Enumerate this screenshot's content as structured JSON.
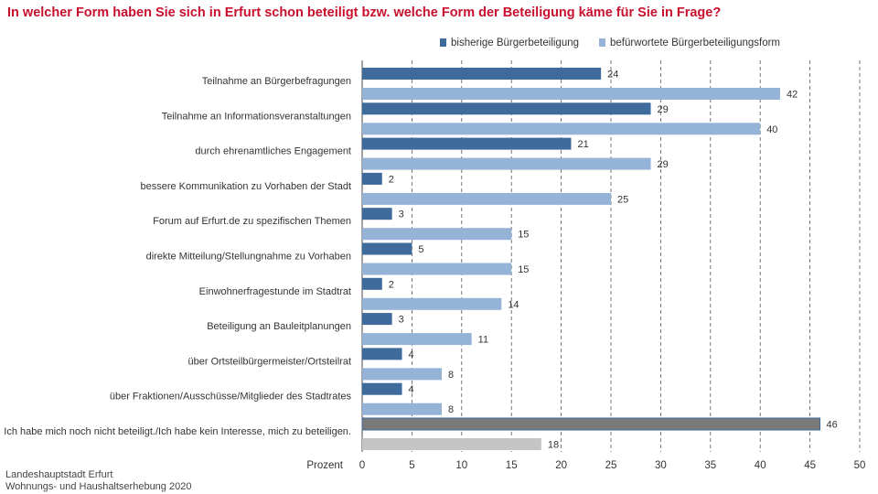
{
  "title": "In welcher Form haben Sie sich in Erfurt schon beteiligt bzw. welche Form der Beteiligung käme für Sie in Frage?",
  "legend": {
    "series1": "bisherige Bürgerbeteiligung",
    "series2": "befürwortete Bürgerbeteiligungsform"
  },
  "footer": {
    "line1": "Landeshauptstadt Erfurt",
    "line2": "Wohnungs- und Haushaltserhebung 2020"
  },
  "colors": {
    "series1": "#3f6a9c",
    "series2": "#95b3d7",
    "highlight1": "#7a7a7a",
    "highlight2": "#c4c4c4",
    "title": "#c8102e"
  },
  "chart_data": {
    "type": "bar",
    "orientation": "horizontal",
    "title": "In welcher Form haben Sie sich in Erfurt schon beteiligt bzw. welche Form der Beteiligung käme für Sie in Frage?",
    "xlabel": "Prozent",
    "xlim": [
      0,
      50
    ],
    "xticks": [
      0,
      5,
      10,
      15,
      20,
      25,
      30,
      35,
      40,
      45,
      50
    ],
    "grid": "vertical dashed",
    "legend_position": "top-right",
    "categories": [
      "Teilnahme an Bürgerbefragungen",
      "Teilnahme an Informationsveranstaltungen",
      "durch ehrenamtliches Engagement",
      "bessere Kommunikation zu Vorhaben der Stadt",
      "Forum auf Erfurt.de zu spezifischen Themen",
      "direkte Mitteilung/Stellungnahme zu Vorhaben",
      "Einwohnerfragestunde im Stadtrat",
      "Beteiligung an Bauleitplanungen",
      "über Ortsteilbürgermeister/Ortsteilrat",
      "über Fraktionen/Ausschüsse/Mitglieder des Stadtrates",
      "Ich habe mich noch nicht beteiligt./Ich habe kein Interesse, mich zu beteiligen."
    ],
    "series": [
      {
        "name": "bisherige Bürgerbeteiligung",
        "values": [
          24,
          29,
          21,
          2,
          3,
          5,
          2,
          3,
          4,
          4,
          46
        ]
      },
      {
        "name": "befürwortete Bürgerbeteiligungsform",
        "values": [
          42,
          40,
          29,
          25,
          15,
          15,
          14,
          11,
          8,
          8,
          18
        ]
      }
    ]
  }
}
